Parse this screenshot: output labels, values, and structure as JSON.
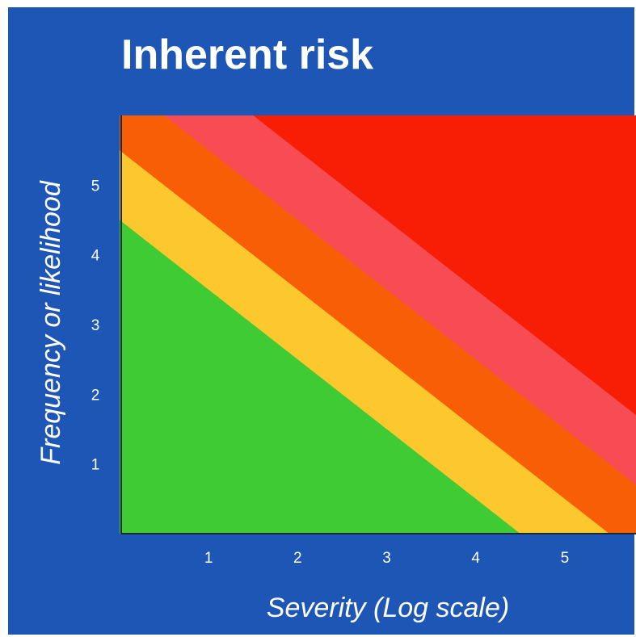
{
  "chart_data": {
    "type": "area",
    "title": "Inherent risk",
    "xlabel": "Severity (Log scale)",
    "ylabel": "Frequency or likelihood",
    "x_ticks": [
      "1",
      "2",
      "3",
      "4",
      "5"
    ],
    "y_ticks": [
      "1",
      "2",
      "3",
      "4",
      "5"
    ],
    "xlim": [
      0,
      5.8
    ],
    "ylim": [
      0,
      6
    ],
    "grid": false,
    "legend": "none",
    "background_color": "#1e56b6",
    "bands": [
      {
        "color": "#3fcb33",
        "boundary_sum": 4.5
      },
      {
        "color": "#fcc82e",
        "boundary_sum": 5.5
      },
      {
        "color": "#f85e06",
        "boundary_sum": 6.5
      },
      {
        "color": "#f74c54",
        "boundary_sum": 7.5
      },
      {
        "color": "#f81e05",
        "boundary_sum": null
      }
    ]
  }
}
